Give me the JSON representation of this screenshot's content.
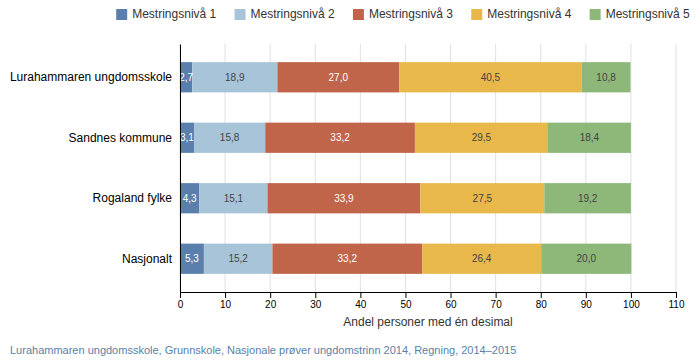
{
  "chart_data": {
    "type": "bar",
    "orientation": "horizontal",
    "stacked": true,
    "data_labels": true,
    "grid": true,
    "legend": "top",
    "categories": [
      "Lurahammaren ungdomsskole",
      "Sandnes kommune",
      "Rogaland fylke",
      "Nasjonalt"
    ],
    "series": [
      {
        "name": "Mestringsnivå 1",
        "color": "#5b7fad",
        "values": [
          2.7,
          3.1,
          4.3,
          5.3
        ],
        "value_labels": [
          "2,7",
          "3,1",
          "4,3",
          "5,3"
        ]
      },
      {
        "name": "Mestringsnivå 2",
        "color": "#a8c4d8",
        "values": [
          18.9,
          15.8,
          15.1,
          15.2
        ],
        "value_labels": [
          "18,9",
          "15,8",
          "15,1",
          "15,2"
        ]
      },
      {
        "name": "Mestringsnivå 3",
        "color": "#c0654a",
        "values": [
          27.0,
          33.2,
          33.9,
          33.2
        ],
        "value_labels": [
          "27,0",
          "33,2",
          "33,9",
          "33,2"
        ]
      },
      {
        "name": "Mestringsnivå 4",
        "color": "#e8b84b",
        "values": [
          40.5,
          29.5,
          27.5,
          26.4
        ],
        "value_labels": [
          "40,5",
          "29,5",
          "27,5",
          "26,4"
        ]
      },
      {
        "name": "Mestringsnivå 5",
        "color": "#8db87a",
        "values": [
          10.8,
          18.4,
          19.2,
          20.0
        ],
        "value_labels": [
          "10,8",
          "18,4",
          "19,2",
          "20,0"
        ]
      }
    ],
    "xlabel": "Andel personer med én desimal",
    "xlim": [
      0,
      110
    ],
    "xticks": [
      0,
      10,
      20,
      30,
      40,
      50,
      60,
      70,
      80,
      90,
      100,
      110
    ],
    "annotations": [
      "Lurahammaren ungdomsskole, Grunnskole, Nasjonale prøver ungdomstrinn 2014, Regning, 2014–2015"
    ]
  }
}
